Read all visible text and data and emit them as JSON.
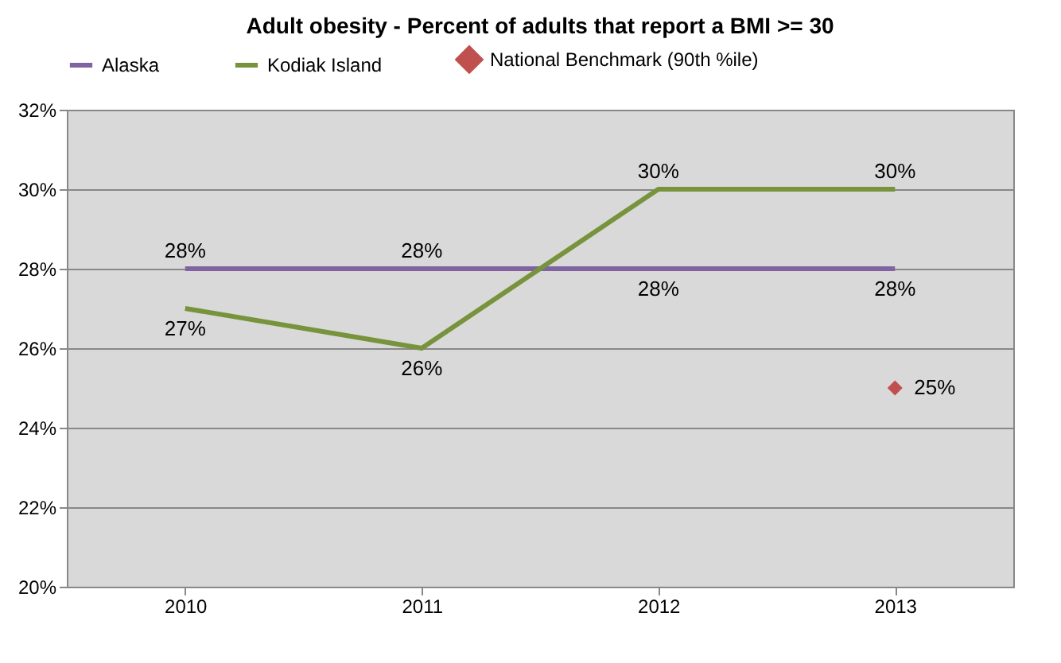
{
  "chart_data": {
    "type": "line",
    "title": "Adult obesity - Percent of adults that report a BMI >= 30",
    "categories": [
      "2010",
      "2011",
      "2012",
      "2013"
    ],
    "series": [
      {
        "name": "Alaska",
        "color": "#8064a2",
        "values": [
          28,
          28,
          28,
          28
        ],
        "value_labels": [
          "28%",
          "28%",
          "28%",
          "28%"
        ]
      },
      {
        "name": "Kodiak Island",
        "color": "#77933c",
        "values": [
          27,
          26,
          30,
          30
        ],
        "value_labels": [
          "27%",
          "26%",
          "30%",
          "30%"
        ]
      },
      {
        "name": "National Benchmark (90th %ile)",
        "type": "scatter",
        "marker": "diamond",
        "color": "#c0504d",
        "values": [
          null,
          null,
          null,
          25
        ],
        "value_labels": [
          null,
          null,
          null,
          "25%"
        ]
      }
    ],
    "ylim": [
      20,
      32
    ],
    "yticks": [
      {
        "value": 20,
        "label": "20%"
      },
      {
        "value": 22,
        "label": "22%"
      },
      {
        "value": 24,
        "label": "24%"
      },
      {
        "value": 26,
        "label": "26%"
      },
      {
        "value": 28,
        "label": "28%"
      },
      {
        "value": 30,
        "label": "30%"
      },
      {
        "value": 32,
        "label": "32%"
      }
    ],
    "grid": "y",
    "legend": "top"
  }
}
